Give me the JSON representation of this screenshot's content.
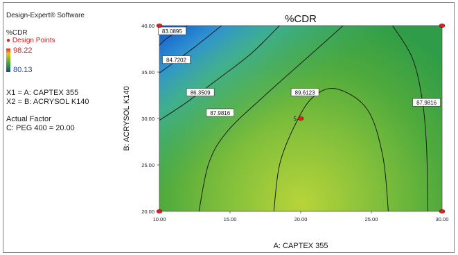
{
  "software_label": "Design-Expert® Software",
  "response": {
    "name": "%CDR",
    "design_points_label": "Design Points",
    "max_value": "98.22",
    "min_value": "80.13"
  },
  "factors": {
    "x1": "X1 = A: CAPTEX 355",
    "x2": "X2 = B: ACRYSOL K140"
  },
  "actual_factor": {
    "heading": "Actual Factor",
    "value": "C: PEG 400 = 20.00"
  },
  "colors": {
    "high": "#e8232a",
    "mid": "#2f9a3a",
    "low": "#1f3fa8",
    "design_point": "#e02020",
    "contour_line": "#1a1a1a"
  },
  "chart_data": {
    "type": "contour",
    "title": "%CDR",
    "xlabel": "A: CAPTEX 355",
    "ylabel": "B: ACRYSOL K140",
    "xlim": [
      10,
      30
    ],
    "ylim": [
      20,
      40
    ],
    "x_ticks": [
      "10.00",
      "15.00",
      "20.00",
      "25.00",
      "30.00"
    ],
    "y_ticks": [
      "20.00",
      "25.00",
      "30.00",
      "35.00",
      "40.00"
    ],
    "contours": [
      {
        "label": "83.0895",
        "label_at": [
          10.9,
          39.4
        ],
        "points": [
          [
            10.0,
            37.9
          ],
          [
            10.5,
            38.6
          ],
          [
            11.3,
            39.4
          ],
          [
            12.0,
            40.0
          ]
        ]
      },
      {
        "label": "84.7202",
        "label_at": [
          11.2,
          36.3
        ],
        "points": [
          [
            10.0,
            34.9
          ],
          [
            11.0,
            36.0
          ],
          [
            12.5,
            37.7
          ],
          [
            14.4,
            40.0
          ]
        ]
      },
      {
        "label": "86.3509",
        "label_at": [
          12.9,
          32.8
        ],
        "points": [
          [
            10.0,
            29.8
          ],
          [
            11.8,
            31.6
          ],
          [
            14.2,
            34.3
          ],
          [
            16.5,
            37.0
          ],
          [
            18.5,
            40.0
          ]
        ]
      },
      {
        "label": "87.9816",
        "label_at": [
          14.3,
          30.6
        ],
        "points": [
          [
            12.8,
            20.0
          ],
          [
            13.5,
            25.2
          ],
          [
            14.8,
            28.6
          ],
          [
            17.4,
            32.4
          ],
          [
            20.5,
            36.6
          ],
          [
            23.0,
            40.0
          ]
        ]
      },
      {
        "label": "89.6123",
        "label_at": [
          20.3,
          32.8
        ],
        "points": [
          [
            18.1,
            20.0
          ],
          [
            18.5,
            25.0
          ],
          [
            19.5,
            29.0
          ],
          [
            20.8,
            32.2
          ],
          [
            22.5,
            33.2
          ],
          [
            24.7,
            31.0
          ],
          [
            25.8,
            26.0
          ],
          [
            26.2,
            20.0
          ]
        ]
      },
      {
        "label": "87.9816",
        "label_at": [
          28.9,
          31.7
        ],
        "points": [
          [
            26.5,
            40.0
          ],
          [
            27.9,
            36.5
          ],
          [
            28.6,
            32.0
          ],
          [
            28.9,
            27.0
          ],
          [
            29.0,
            20.0
          ]
        ]
      }
    ],
    "design_points": [
      {
        "x": 10,
        "y": 40,
        "label": ""
      },
      {
        "x": 30,
        "y": 40,
        "label": ""
      },
      {
        "x": 10,
        "y": 20,
        "label": ""
      },
      {
        "x": 30,
        "y": 20,
        "label": ""
      },
      {
        "x": 20,
        "y": 30,
        "label": "5"
      }
    ],
    "grid": false
  }
}
